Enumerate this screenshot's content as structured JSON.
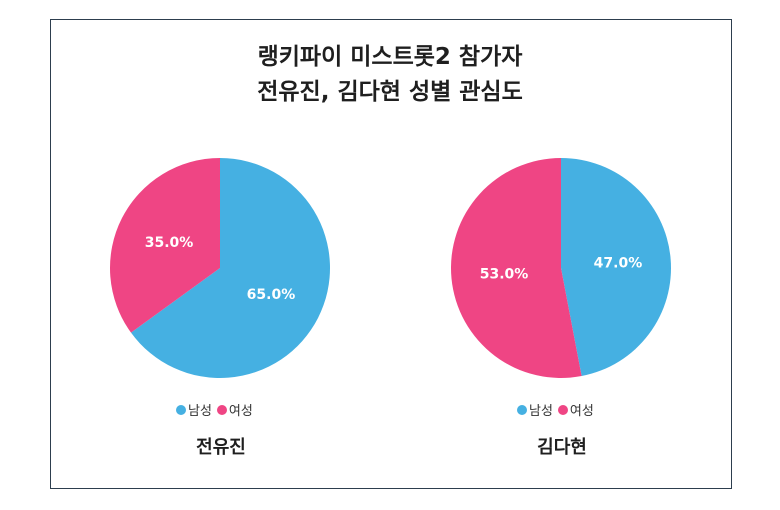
{
  "title_line1": "랭키파이 미스트롯2 참가자",
  "title_line2": "전유진, 김다현 성별 관심도",
  "colors": {
    "male": "#45b0e2",
    "female": "#ef4584"
  },
  "chart_data": [
    {
      "type": "pie",
      "name": "전유진",
      "slices": [
        {
          "label": "남성",
          "value": 65.0,
          "display": "65.0%"
        },
        {
          "label": "여성",
          "value": 35.0,
          "display": "35.0%"
        }
      ],
      "legend": [
        "남성",
        "여성"
      ]
    },
    {
      "type": "pie",
      "name": "김다현",
      "slices": [
        {
          "label": "남성",
          "value": 47.0,
          "display": "47.0%"
        },
        {
          "label": "여성",
          "value": 53.0,
          "display": "53.0%"
        }
      ],
      "legend": [
        "남성",
        "여성"
      ]
    }
  ]
}
